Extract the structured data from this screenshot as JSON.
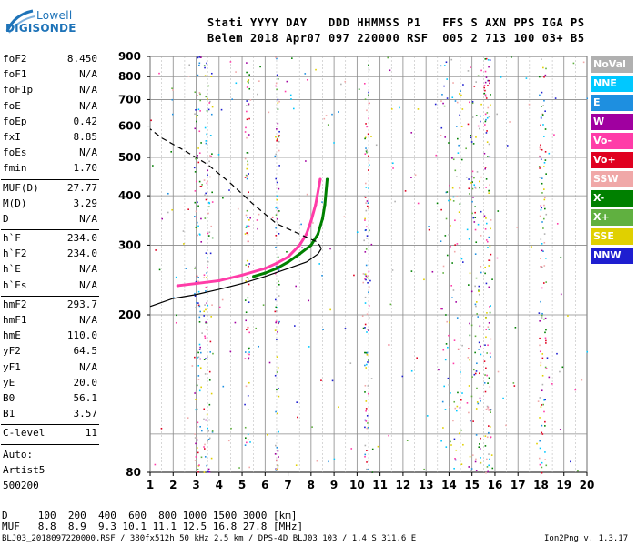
{
  "logo": {
    "line1": "Lowell",
    "line2": "DIGISONDE"
  },
  "header": {
    "line1": "Stati YYYY DAY   DDD HHMMSS P1   FFS S AXN PPS IGA PS",
    "line2": "Belem 2018 Apr07 097 220000 RSF  005 2 713 100 03+ B5"
  },
  "params": [
    {
      "k": "foF2",
      "v": "8.450"
    },
    {
      "k": "foF1",
      "v": "N/A"
    },
    {
      "k": "foF1p",
      "v": "N/A"
    },
    {
      "k": "foE",
      "v": "N/A"
    },
    {
      "k": "foEp",
      "v": "0.42"
    },
    {
      "k": "fxI",
      "v": "8.85"
    },
    {
      "k": "foEs",
      "v": "N/A"
    },
    {
      "k": "fmin",
      "v": "1.70"
    },
    {
      "sep": true
    },
    {
      "k": "MUF(D)",
      "v": "27.77"
    },
    {
      "k": "M(D)",
      "v": "3.29"
    },
    {
      "k": "D",
      "v": "N/A"
    },
    {
      "sep": true
    },
    {
      "k": "h`F",
      "v": "234.0"
    },
    {
      "k": "h`F2",
      "v": "234.0"
    },
    {
      "k": "h`E",
      "v": "N/A"
    },
    {
      "k": "h`Es",
      "v": "N/A"
    },
    {
      "sep": true
    },
    {
      "k": "hmF2",
      "v": "293.7"
    },
    {
      "k": "hmF1",
      "v": "N/A"
    },
    {
      "k": "hmE",
      "v": "110.0"
    },
    {
      "k": "yF2",
      "v": "64.5"
    },
    {
      "k": "yF1",
      "v": "N/A"
    },
    {
      "k": "yE",
      "v": "20.0"
    },
    {
      "k": "B0",
      "v": "56.1"
    },
    {
      "k": "B1",
      "v": "3.57"
    },
    {
      "sep": true
    },
    {
      "k": "C-level",
      "v": "11"
    },
    {
      "sep": true
    }
  ],
  "auto": [
    "Auto:",
    "Artist5",
    "500200"
  ],
  "muf_table": {
    "d_row": "D     100  200  400  600  800 1000 1500 3000 [km]",
    "muf_row": "MUF   8.8  8.9  9.3 10.1 11.1 12.5 16.8 27.8 [MHz]"
  },
  "footer": {
    "left": "BLJ03_2018097220000.RSF / 380fx512h 50 kHz 2.5 km / DPS-4D BLJ03 103 / 1.4 S 311.6 E",
    "right": "Ion2Png v. 1.3.17"
  },
  "legend": [
    {
      "label": "NoVal",
      "color": "#b0b0b0"
    },
    {
      "label": "NNE",
      "color": "#00c8ff"
    },
    {
      "label": "E",
      "color": "#1e8fe0"
    },
    {
      "label": "W",
      "color": "#a000a0"
    },
    {
      "label": "Vo-",
      "color": "#ff3ca8"
    },
    {
      "label": "Vo+",
      "color": "#e00020"
    },
    {
      "label": "SSW",
      "color": "#f0a8a8"
    },
    {
      "label": "X-",
      "color": "#008000"
    },
    {
      "label": "X+",
      "color": "#60b040"
    },
    {
      "label": "SSE",
      "color": "#e0d000"
    },
    {
      "label": "NNW",
      "color": "#1e1ed0"
    }
  ],
  "chart_data": {
    "type": "scatter",
    "title": "",
    "xlabel": "",
    "ylabel": "",
    "xlim": [
      1,
      20
    ],
    "ylim": [
      80,
      900
    ],
    "y_scale": "log",
    "x_ticks": [
      1,
      2,
      3,
      4,
      5,
      6,
      7,
      8,
      9,
      10,
      11,
      12,
      13,
      14,
      15,
      16,
      17,
      18,
      19,
      20
    ],
    "y_ticks": [
      80,
      200,
      300,
      400,
      500,
      600,
      700,
      800,
      900
    ],
    "y_gridlines": [
      100,
      200,
      300,
      400,
      500,
      600,
      700,
      800,
      900
    ],
    "x_minor_gridlines": [
      1.5,
      2.5,
      3.5,
      4.5,
      5.5,
      6.5,
      7.5,
      8.5,
      9.5,
      10.5,
      11.5,
      12.5,
      13.5,
      14.5,
      15.5,
      16.5,
      17.5,
      18.5,
      19.5
    ],
    "grid": true,
    "legend_position": "right",
    "series": [
      {
        "name": "O-trace",
        "color": "#ff3ca8",
        "x": [
          2.2,
          3.0,
          4.0,
          5.0,
          6.0,
          6.5,
          7.0,
          7.5,
          7.8,
          8.0,
          8.2,
          8.4
        ],
        "y": [
          237,
          240,
          244,
          252,
          262,
          270,
          280,
          300,
          320,
          345,
          380,
          440
        ]
      },
      {
        "name": "X-trace",
        "color": "#008000",
        "x": [
          5.5,
          6.0,
          6.5,
          7.0,
          7.5,
          8.0,
          8.3,
          8.5,
          8.6,
          8.7
        ],
        "y": [
          250,
          255,
          262,
          272,
          285,
          300,
          320,
          350,
          380,
          440
        ]
      },
      {
        "name": "Profile",
        "color": "#000000",
        "x": [
          1.0,
          2.0,
          3.0,
          4.0,
          5.0,
          6.0,
          7.0,
          7.8,
          8.3,
          8.45,
          8.3,
          7.5,
          6.5,
          5.5,
          4.5,
          3.5,
          2.5,
          1.5,
          1.0
        ],
        "y": [
          210,
          220,
          225,
          232,
          240,
          250,
          262,
          272,
          285,
          294,
          305,
          320,
          340,
          380,
          430,
          480,
          520,
          560,
          590
        ]
      }
    ]
  }
}
